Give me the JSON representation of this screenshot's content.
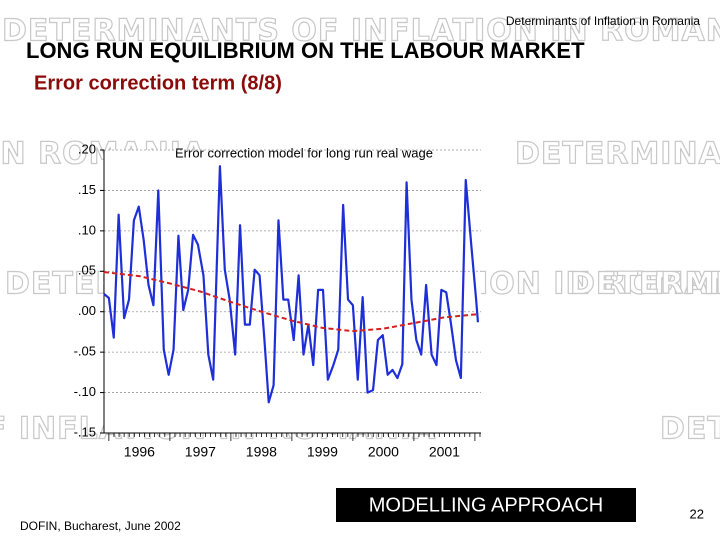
{
  "header": "Determinants of Inflation in Romania",
  "watermark": "DETERMINANTS OF INFLATION IN ROMANIA",
  "title": "LONG RUN EQUILIBRIUM ON THE LABOUR MARKET",
  "subtitle": "Error correction term  (8/8)",
  "section": "MODELLING APPROACH",
  "footer": "DOFIN, Bucharest, June 2002",
  "page_number": "22",
  "chart_data": {
    "type": "line",
    "title": "Error correction model for long run real wage",
    "x": [
      1995.92,
      1996.0,
      1996.08,
      1996.16,
      1996.25,
      1996.33,
      1996.41,
      1996.49,
      1996.57,
      1996.65,
      1996.73,
      1996.81,
      1996.9,
      1996.98,
      1997.06,
      1997.14,
      1997.22,
      1997.3,
      1997.38,
      1997.46,
      1997.55,
      1997.63,
      1997.71,
      1997.82,
      1997.9,
      1997.98,
      1998.07,
      1998.15,
      1998.23,
      1998.31,
      1998.39,
      1998.47,
      1998.55,
      1998.62,
      1998.7,
      1998.78,
      1998.86,
      1998.94,
      1999.03,
      1999.11,
      1999.19,
      1999.27,
      1999.35,
      1999.43,
      1999.51,
      1999.59,
      1999.68,
      1999.76,
      1999.84,
      1999.92,
      2000.0,
      2000.08,
      2000.16,
      2000.24,
      2000.33,
      2000.41,
      2000.49,
      2000.57,
      2000.65,
      2000.73,
      2000.81,
      2000.88,
      2000.96,
      2001.04,
      2001.12,
      2001.2,
      2001.29,
      2001.37,
      2001.45,
      2001.53,
      2001.61,
      2001.69,
      2001.77,
      2001.85,
      2001.94,
      2002.02,
      2002.05
    ],
    "series": [
      {
        "color": "#1f2fd8",
        "values": [
          0.022,
          0.017,
          -0.032,
          0.12,
          -0.008,
          0.015,
          0.113,
          0.13,
          0.089,
          0.033,
          0.008,
          0.15,
          -0.047,
          -0.078,
          -0.047,
          0.094,
          0.002,
          0.027,
          0.095,
          0.083,
          0.045,
          -0.053,
          -0.084,
          0.18,
          0.052,
          0.015,
          -0.053,
          0.107,
          -0.016,
          -0.016,
          0.052,
          0.045,
          -0.035,
          -0.112,
          -0.091,
          0.113,
          0.015,
          0.015,
          -0.035,
          0.045,
          -0.053,
          -0.016,
          -0.066,
          0.027,
          0.027,
          -0.084,
          -0.066,
          -0.047,
          0.132,
          0.015,
          0.008,
          -0.084,
          0.018,
          -0.1,
          -0.097,
          -0.035,
          -0.029,
          -0.078,
          -0.072,
          -0.082,
          -0.065,
          0.16,
          0.015,
          -0.035,
          -0.053,
          0.033,
          -0.053,
          -0.066,
          0.027,
          0.024,
          -0.016,
          -0.06,
          -0.082,
          0.163,
          0.083,
          0.015,
          -0.013
        ]
      },
      {
        "color": "#d42020",
        "dashed": true,
        "x": [
          1995.92,
          1996.5,
          1997.0,
          1997.5,
          1998.0,
          1998.5,
          1999.0,
          1999.5,
          2000.0,
          2000.5,
          2001.0,
          2001.5,
          2002.05
        ],
        "values": [
          0.049,
          0.044,
          0.035,
          0.025,
          0.012,
          0.0,
          -0.011,
          -0.02,
          -0.024,
          -0.021,
          -0.014,
          -0.007,
          -0.003
        ]
      }
    ],
    "xlim": [
      1995.92,
      2002.1
    ],
    "xticks": [
      {
        "value": 1996.5,
        "label": "1996"
      },
      {
        "value": 1997.5,
        "label": "1997"
      },
      {
        "value": 1998.5,
        "label": "1998"
      },
      {
        "value": 1999.5,
        "label": "1999"
      },
      {
        "value": 2000.5,
        "label": "2000"
      },
      {
        "value": 2001.5,
        "label": "2001"
      }
    ],
    "ylim": [
      -0.15,
      0.2
    ],
    "yticks": [
      {
        "value": 0.2,
        "label": ".20"
      },
      {
        "value": 0.15,
        "label": ".15"
      },
      {
        "value": 0.1,
        "label": ".10"
      },
      {
        "value": 0.05,
        "label": ".05"
      },
      {
        "value": 0.0,
        "label": ".00"
      },
      {
        "value": -0.05,
        "label": "-.05"
      },
      {
        "value": -0.1,
        "label": "-.10"
      },
      {
        "value": -0.15,
        "label": "-.15"
      }
    ],
    "grid": true
  }
}
